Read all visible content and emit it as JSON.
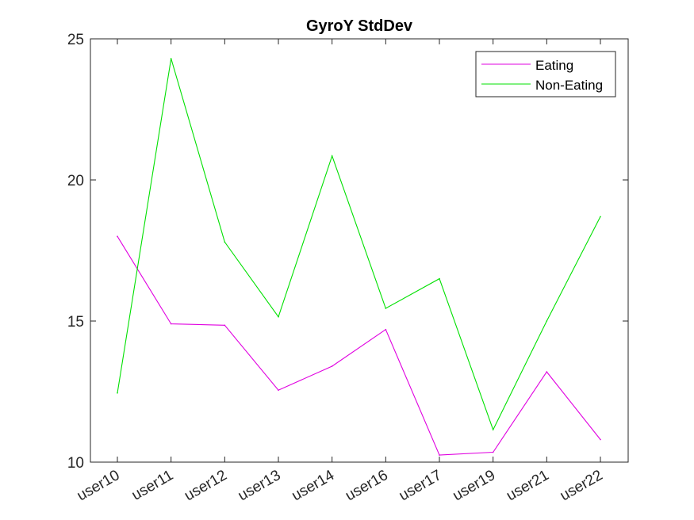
{
  "chart_data": {
    "type": "line",
    "title": "GyroY StdDev",
    "xlabel": "",
    "ylabel": "",
    "categories": [
      "user10",
      "user11",
      "user12",
      "user13",
      "user14",
      "user16",
      "user17",
      "user19",
      "user21",
      "user22"
    ],
    "ylim": [
      10,
      25
    ],
    "yticks": [
      10,
      15,
      20,
      25
    ],
    "grid": false,
    "legend_position": "top-right",
    "series": [
      {
        "name": "Eating",
        "color": "#e000e0",
        "values": [
          18.0,
          14.9,
          14.85,
          12.55,
          13.4,
          14.7,
          10.25,
          10.35,
          13.2,
          10.8
        ]
      },
      {
        "name": "Non-Eating",
        "color": "#00e000",
        "values": [
          12.45,
          24.3,
          17.8,
          15.15,
          20.85,
          15.45,
          16.5,
          11.15,
          15.0,
          18.7
        ]
      }
    ]
  }
}
